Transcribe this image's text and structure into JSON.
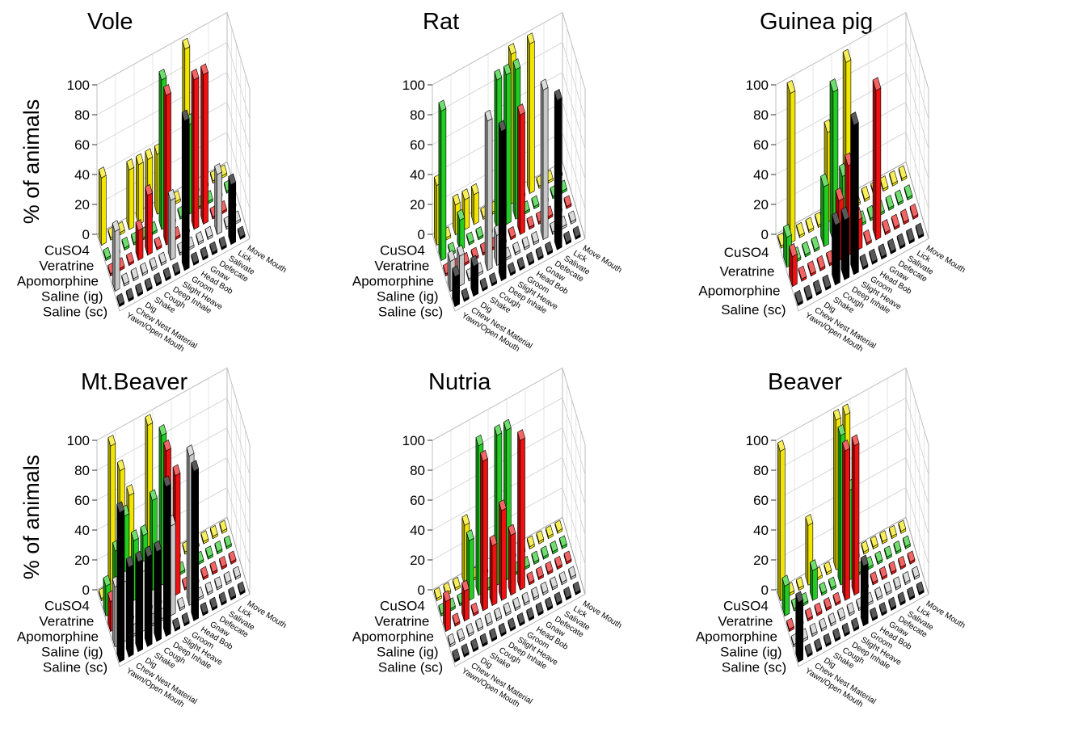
{
  "y_axis_label": "% of animals",
  "colors": {
    "CuSO4": "#f2e600",
    "Veratrine": "#22cc22",
    "Apomorphine": "#ee1111",
    "Saline (ig)": "#c8c8c8",
    "Saline (sc)": "#000000"
  },
  "chart_data": [
    {
      "type": "bar3d",
      "title": "Vole",
      "zlim": [
        0,
        100
      ],
      "zticks": [
        0,
        20,
        40,
        60,
        80,
        100
      ],
      "treatments": [
        "CuSO4",
        "Veratrine",
        "Apomorphine",
        "Saline (ig)",
        "Saline (sc)"
      ],
      "behaviors": [
        "Yawn/Open Mouth",
        "Chew Nest Material",
        "Dig",
        "Shake",
        "Cough",
        "Deep Inhale",
        "Slight Heave",
        "Groom",
        "Head Bob",
        "Gnaw",
        "Defecate",
        "Salivate",
        "Lick",
        "Move Mouth"
      ],
      "series": [
        {
          "name": "CuSO4",
          "values": [
            45,
            0,
            0,
            40,
            40,
            40,
            40,
            0,
            0,
            100,
            0,
            0,
            0,
            0
          ]
        },
        {
          "name": "Veratrine",
          "values": [
            0,
            0,
            0,
            0,
            0,
            0,
            100,
            0,
            0,
            60,
            0,
            0,
            0,
            0
          ]
        },
        {
          "name": "Apomorphine",
          "values": [
            0,
            0,
            0,
            20,
            40,
            0,
            100,
            0,
            0,
            100,
            100,
            0,
            0,
            0
          ]
        },
        {
          "name": "Saline (ig)",
          "values": [
            40,
            0,
            0,
            0,
            0,
            0,
            40,
            0,
            0,
            0,
            0,
            40,
            0,
            0
          ]
        },
        {
          "name": "Saline (sc)",
          "values": [
            0,
            0,
            0,
            0,
            0,
            0,
            0,
            100,
            0,
            0,
            0,
            0,
            40,
            0
          ]
        }
      ]
    },
    {
      "type": "bar3d",
      "title": "Rat",
      "zlim": [
        0,
        100
      ],
      "zticks": [
        0,
        20,
        40,
        60,
        80,
        100
      ],
      "treatments": [
        "CuSO4",
        "Veratrine",
        "Apomorphine",
        "Saline (ig)",
        "Saline (sc)"
      ],
      "behaviors": [
        "Yawn/Open Mouth",
        "Chew Nest Material",
        "Dig",
        "Shake",
        "Cough",
        "Deep Inhale",
        "Slight Heave",
        "Groom",
        "Head Bob",
        "Gnaw",
        "Defecate",
        "Salivate",
        "Lick",
        "Move Mouth"
      ],
      "series": [
        {
          "name": "CuSO4",
          "values": [
            40,
            0,
            20,
            20,
            20,
            0,
            0,
            0,
            100,
            0,
            100,
            0,
            0,
            0
          ]
        },
        {
          "name": "Veratrine",
          "values": [
            100,
            0,
            20,
            0,
            0,
            0,
            100,
            100,
            100,
            0,
            0,
            0,
            0,
            0
          ]
        },
        {
          "name": "Apomorphine",
          "values": [
            0,
            0,
            0,
            0,
            0,
            0,
            0,
            0,
            80,
            0,
            0,
            0,
            0,
            0
          ]
        },
        {
          "name": "Saline (ig)",
          "values": [
            20,
            20,
            0,
            0,
            100,
            20,
            0,
            0,
            0,
            0,
            100,
            0,
            0,
            0
          ]
        },
        {
          "name": "Saline (sc)",
          "values": [
            20,
            0,
            20,
            0,
            0,
            100,
            0,
            0,
            0,
            0,
            0,
            100,
            0,
            0
          ]
        }
      ]
    },
    {
      "type": "bar3d",
      "title": "Guinea pig",
      "zlim": [
        0,
        100
      ],
      "zticks": [
        0,
        20,
        40,
        60,
        80,
        100
      ],
      "treatments": [
        "CuSO4",
        "Veratrine",
        "Apomorphine",
        "Saline (sc)"
      ],
      "behaviors": [
        "Yawn/Open Mouth",
        "Chew Nest Material",
        "Dig",
        "Shake",
        "Cough",
        "Deep Inhale",
        "Slight Heave",
        "Groom",
        "Head Bob",
        "Gnaw",
        "Defecate",
        "Salivate",
        "Lick",
        "Move Mouth"
      ],
      "series": [
        {
          "name": "CuSO4",
          "values": [
            0,
            100,
            0,
            0,
            0,
            60,
            0,
            100,
            0,
            0,
            0,
            0,
            0,
            0
          ]
        },
        {
          "name": "Veratrine",
          "values": [
            20,
            0,
            0,
            0,
            40,
            100,
            40,
            0,
            0,
            0,
            0,
            0,
            0,
            0
          ]
        },
        {
          "name": "Apomorphine",
          "values": [
            20,
            0,
            0,
            0,
            0,
            40,
            60,
            20,
            0,
            100,
            0,
            0,
            0,
            0
          ]
        },
        {
          "name": "Saline (sc)",
          "values": [
            0,
            0,
            0,
            0,
            40,
            40,
            100,
            0,
            0,
            0,
            0,
            0,
            0,
            0
          ]
        }
      ]
    },
    {
      "type": "bar3d",
      "title": "Mt.Beaver",
      "zlim": [
        0,
        100
      ],
      "zticks": [
        0,
        20,
        40,
        60,
        80,
        100
      ],
      "treatments": [
        "CuSO4",
        "Veratrine",
        "Apomorphine",
        "Saline (ig)",
        "Saline (sc)"
      ],
      "behaviors": [
        "Yawn/Open Mouth",
        "Chew Nest Material",
        "Dig",
        "Shake",
        "Cough",
        "Deep Inhale",
        "Slight Heave",
        "Groom",
        "Head Bob",
        "Gnaw",
        "Defecate",
        "Salivate",
        "Lick",
        "Move Mouth"
      ],
      "series": [
        {
          "name": "CuSO4",
          "values": [
            0,
            100,
            80,
            60,
            0,
            100,
            0,
            0,
            0,
            0,
            0,
            0,
            0,
            0
          ]
        },
        {
          "name": "Veratrine",
          "values": [
            20,
            40,
            60,
            40,
            40,
            60,
            100,
            0,
            0,
            0,
            0,
            0,
            0,
            0
          ]
        },
        {
          "name": "Apomorphine",
          "values": [
            20,
            0,
            0,
            0,
            0,
            0,
            100,
            80,
            0,
            0,
            0,
            0,
            0,
            0
          ]
        },
        {
          "name": "Saline (ig)",
          "values": [
            40,
            40,
            0,
            40,
            0,
            0,
            60,
            0,
            100,
            0,
            0,
            0,
            0,
            0
          ]
        },
        {
          "name": "Saline (sc)",
          "values": [
            100,
            60,
            60,
            60,
            60,
            100,
            0,
            0,
            100,
            0,
            0,
            0,
            0,
            0
          ]
        }
      ]
    },
    {
      "type": "bar3d",
      "title": "Nutria",
      "zlim": [
        0,
        100
      ],
      "zticks": [
        0,
        20,
        40,
        60,
        80,
        100
      ],
      "treatments": [
        "CuSO4",
        "Veratrine",
        "Apomorphine",
        "Saline (ig)",
        "Saline (sc)"
      ],
      "behaviors": [
        "Yawn/Open Mouth",
        "Chew Nest Material",
        "Dig",
        "Shake",
        "Cough",
        "Deep Inhale",
        "Slight Heave",
        "Groom",
        "Head Bob",
        "Gnaw",
        "Defecate",
        "Salivate",
        "Lick",
        "Move Mouth"
      ],
      "series": [
        {
          "name": "CuSO4",
          "values": [
            0,
            0,
            0,
            40,
            0,
            0,
            0,
            0,
            0,
            0,
            0,
            0,
            0,
            0
          ]
        },
        {
          "name": "Veratrine",
          "values": [
            0,
            0,
            0,
            40,
            100,
            0,
            100,
            100,
            0,
            0,
            0,
            0,
            0,
            0
          ]
        },
        {
          "name": "Apomorphine",
          "values": [
            20,
            0,
            20,
            0,
            100,
            40,
            60,
            40,
            100,
            0,
            0,
            0,
            0,
            0
          ]
        },
        {
          "name": "Saline (ig)",
          "values": [
            0,
            0,
            0,
            0,
            0,
            0,
            0,
            0,
            0,
            0,
            0,
            0,
            0,
            0
          ]
        },
        {
          "name": "Saline (sc)",
          "values": [
            0,
            0,
            0,
            0,
            0,
            0,
            0,
            0,
            0,
            0,
            0,
            0,
            0,
            0
          ]
        }
      ]
    },
    {
      "type": "bar3d",
      "title": "Beaver",
      "zlim": [
        0,
        100
      ],
      "zticks": [
        0,
        20,
        40,
        60,
        80,
        100
      ],
      "treatments": [
        "CuSO4",
        "Veratrine",
        "Apomorphine",
        "Saline (ig)",
        "Saline (sc)"
      ],
      "behaviors": [
        "Yawn/Open Mouth",
        "Chew Nest Material",
        "Dig",
        "Shake",
        "Cough",
        "Deep Inhale",
        "Slight Heave",
        "Groom",
        "Head Bob",
        "Gnaw",
        "Defecate",
        "Salivate",
        "Lick",
        "Move Mouth"
      ],
      "series": [
        {
          "name": "CuSO4",
          "values": [
            100,
            0,
            0,
            40,
            0,
            0,
            100,
            100,
            0,
            0,
            0,
            0,
            0,
            0
          ]
        },
        {
          "name": "Veratrine",
          "values": [
            20,
            0,
            0,
            20,
            0,
            0,
            100,
            60,
            0,
            0,
            0,
            0,
            0,
            0
          ]
        },
        {
          "name": "Apomorphine",
          "values": [
            0,
            0,
            0,
            0,
            0,
            0,
            100,
            100,
            0,
            0,
            0,
            0,
            0,
            0
          ]
        },
        {
          "name": "Saline (ig)",
          "values": [
            0,
            0,
            0,
            0,
            0,
            0,
            0,
            0,
            0,
            0,
            0,
            0,
            0,
            0
          ]
        },
        {
          "name": "Saline (sc)",
          "values": [
            40,
            0,
            0,
            0,
            0,
            0,
            0,
            40,
            0,
            0,
            0,
            0,
            0,
            0
          ]
        }
      ]
    }
  ]
}
